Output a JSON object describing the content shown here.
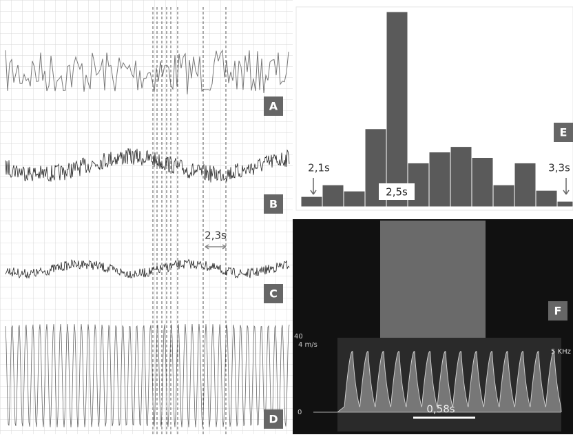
{
  "panels": {
    "A": {
      "label": "A"
    },
    "B": {
      "label": "B"
    },
    "C": {
      "label": "C",
      "interval_label": "2,3s"
    },
    "D": {
      "label": "D"
    },
    "E": {
      "label": "E",
      "type": "histogram",
      "values": [
        15,
        32,
        23,
        114,
        285,
        64,
        80,
        88,
        72,
        32,
        64,
        24,
        8
      ],
      "ylim": [
        0,
        290
      ],
      "color": "#5a5a5a",
      "start_label": "2,1s",
      "peak_label": "2,5s",
      "end_label": "3,3s"
    },
    "F": {
      "label": "F",
      "scale_top": "40",
      "velocity_unit": "4 m/s",
      "frequency": "5 KHz",
      "zero_label": "0",
      "interval_label": "0,58s"
    }
  }
}
